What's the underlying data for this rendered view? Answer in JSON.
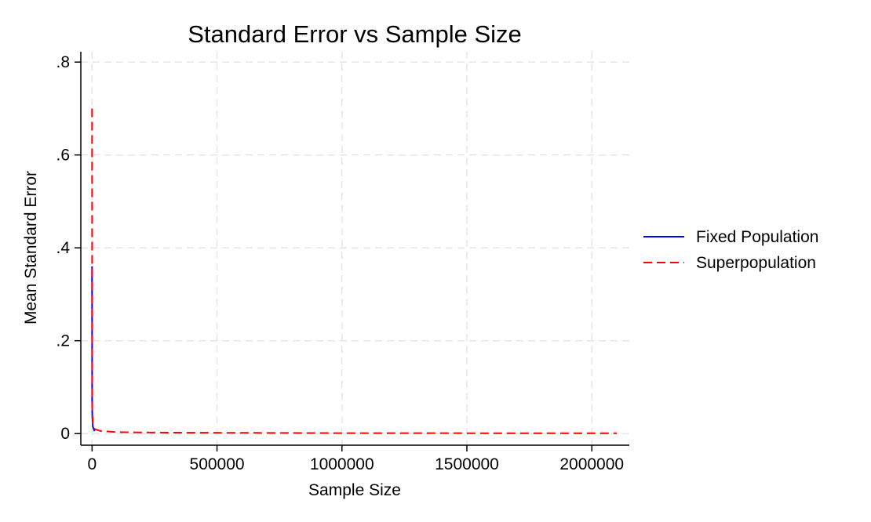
{
  "chart_data": {
    "type": "line",
    "title": "Standard Error vs Sample Size",
    "xlabel": "Sample Size",
    "ylabel": "Mean Standard Error",
    "xlim": [
      -45000,
      2150000
    ],
    "ylim": [
      -0.025,
      0.8223
    ],
    "xticks": [
      0,
      500000,
      1000000,
      1500000,
      2000000
    ],
    "xtick_labels": [
      "0",
      "500000",
      "1000000",
      "1500000",
      "2000000"
    ],
    "yticks": [
      0,
      0.2,
      0.4,
      0.6,
      0.8
    ],
    "ytick_labels": [
      "0",
      ".2",
      ".4",
      ".6",
      ".8"
    ],
    "grid": true,
    "legend_position": "right",
    "series": [
      {
        "name": "Fixed Population",
        "color": "#0000ff",
        "dash": "solid",
        "x": [
          2,
          100,
          300,
          1000,
          3000,
          10000
        ],
        "y": [
          0.36,
          0.12,
          0.07,
          0.04,
          0.015,
          0.005
        ]
      },
      {
        "name": "Superpopulation",
        "color": "#ff0000",
        "dash": "dashed",
        "x": [
          2,
          100,
          300,
          1000,
          3000,
          10000,
          30000,
          100000,
          300000,
          1000000,
          2100000
        ],
        "y": [
          0.7,
          0.36,
          0.12,
          0.05,
          0.02,
          0.01,
          0.006,
          0.003,
          0.002,
          0.001,
          0.0006
        ]
      }
    ]
  }
}
